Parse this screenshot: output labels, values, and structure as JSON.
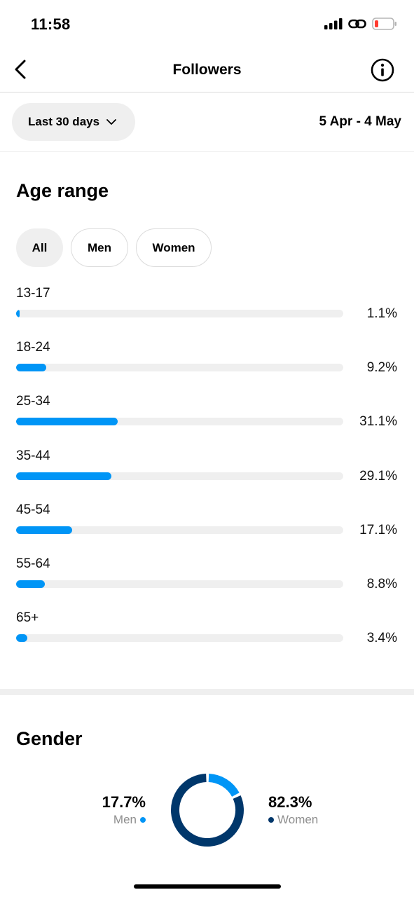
{
  "status_bar": {
    "time": "11:58"
  },
  "nav": {
    "title": "Followers"
  },
  "filter": {
    "period_label": "Last 30 days",
    "date_range": "5 Apr - 4 May"
  },
  "age_section": {
    "title": "Age range",
    "chips": [
      {
        "label": "All",
        "selected": true
      },
      {
        "label": "Men",
        "selected": false
      },
      {
        "label": "Women",
        "selected": false
      }
    ],
    "rows": [
      {
        "label": "13-17",
        "value": "1.1%",
        "fraction": 0.011
      },
      {
        "label": "18-24",
        "value": "9.2%",
        "fraction": 0.092
      },
      {
        "label": "25-34",
        "value": "31.1%",
        "fraction": 0.311
      },
      {
        "label": "35-44",
        "value": "29.1%",
        "fraction": 0.291
      },
      {
        "label": "45-54",
        "value": "17.1%",
        "fraction": 0.171
      },
      {
        "label": "55-64",
        "value": "8.8%",
        "fraction": 0.088
      },
      {
        "label": "65+",
        "value": "3.4%",
        "fraction": 0.034
      }
    ]
  },
  "gender_section": {
    "title": "Gender",
    "men": {
      "value": "17.7%",
      "label": "Men",
      "fraction": 0.177
    },
    "women": {
      "value": "82.3%",
      "label": "Women",
      "fraction": 0.823
    }
  },
  "colors": {
    "accent": "#0095f6",
    "men": "#0095f6",
    "women": "#00376b",
    "track": "#efefef"
  }
}
